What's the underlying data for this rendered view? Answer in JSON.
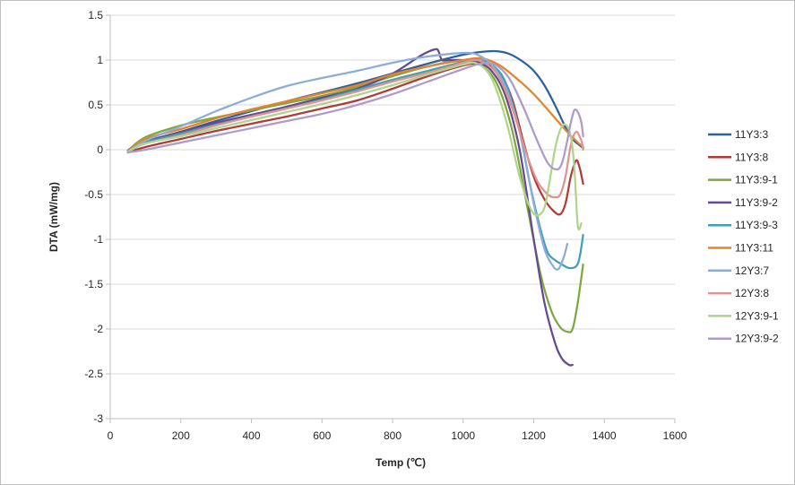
{
  "chart_data": {
    "type": "line",
    "xlabel": "Temp (℃)",
    "ylabel": "DTA (mW/mg)",
    "xlim": [
      0,
      1600
    ],
    "ylim": [
      -3,
      1.5
    ],
    "xticks": [
      0,
      200,
      400,
      600,
      800,
      1000,
      1200,
      1400,
      1600
    ],
    "yticks": [
      -3,
      -2.5,
      -2,
      -1.5,
      -1,
      -0.5,
      0,
      0.5,
      1,
      1.5
    ],
    "grid": "horizontal",
    "legend_position": "right",
    "series": [
      {
        "name": "11Y3:3",
        "color": "#2e5f9e",
        "x": [
          50,
          100,
          200,
          300,
          400,
          500,
          600,
          700,
          800,
          900,
          1000,
          1050,
          1090,
          1130,
          1170,
          1200,
          1230,
          1260,
          1290,
          1310,
          1330,
          1340
        ],
        "y": [
          -0.03,
          0.08,
          0.2,
          0.32,
          0.43,
          0.54,
          0.64,
          0.74,
          0.85,
          0.96,
          1.06,
          1.09,
          1.1,
          1.07,
          0.98,
          0.88,
          0.72,
          0.5,
          0.25,
          0.12,
          0.05,
          0.02
        ]
      },
      {
        "name": "11Y3:8",
        "color": "#b23b37",
        "x": [
          50,
          100,
          200,
          300,
          400,
          500,
          600,
          700,
          800,
          900,
          1000,
          1040,
          1080,
          1110,
          1140,
          1170,
          1200,
          1230,
          1255,
          1275,
          1290,
          1305,
          1320,
          1330,
          1340
        ],
        "y": [
          -0.03,
          0.03,
          0.12,
          0.21,
          0.29,
          0.37,
          0.46,
          0.55,
          0.68,
          0.82,
          0.94,
          0.96,
          0.93,
          0.82,
          0.55,
          0.1,
          -0.3,
          -0.55,
          -0.68,
          -0.72,
          -0.6,
          -0.3,
          -0.12,
          -0.2,
          -0.38
        ]
      },
      {
        "name": "11Y3:9-1",
        "color": "#7ea83e",
        "x": [
          50,
          100,
          200,
          300,
          400,
          500,
          600,
          700,
          800,
          900,
          980,
          1020,
          1060,
          1100,
          1140,
          1180,
          1220,
          1250,
          1275,
          1295,
          1310,
          1325,
          1340
        ],
        "y": [
          -0.01,
          0.14,
          0.27,
          0.36,
          0.44,
          0.52,
          0.6,
          0.7,
          0.82,
          0.93,
          0.99,
          0.99,
          0.92,
          0.7,
          0.2,
          -0.6,
          -1.4,
          -1.8,
          -1.98,
          -2.03,
          -2.0,
          -1.7,
          -1.28
        ]
      },
      {
        "name": "11Y3:9-2",
        "color": "#644b8f",
        "x": [
          50,
          100,
          200,
          300,
          400,
          500,
          600,
          700,
          800,
          880,
          920,
          930,
          940,
          960,
          1000,
          1040,
          1080,
          1120,
          1160,
          1200,
          1230,
          1260,
          1280,
          1300,
          1310
        ],
        "y": [
          -0.01,
          0.09,
          0.2,
          0.3,
          0.39,
          0.48,
          0.58,
          0.68,
          0.85,
          1.05,
          1.12,
          1.1,
          1.0,
          1.0,
          1.0,
          0.98,
          0.88,
          0.6,
          0.0,
          -1.0,
          -1.7,
          -2.15,
          -2.33,
          -2.4,
          -2.4
        ]
      },
      {
        "name": "11Y3:9-3",
        "color": "#3fa0b8",
        "x": [
          50,
          100,
          200,
          300,
          400,
          500,
          600,
          700,
          800,
          900,
          1000,
          1040,
          1080,
          1120,
          1160,
          1190,
          1220,
          1240,
          1260,
          1280,
          1300,
          1320,
          1330,
          1340
        ],
        "y": [
          -0.02,
          0.08,
          0.18,
          0.28,
          0.37,
          0.46,
          0.56,
          0.67,
          0.78,
          0.88,
          0.98,
          1.0,
          0.95,
          0.75,
          0.2,
          -0.4,
          -0.9,
          -1.15,
          -1.23,
          -1.28,
          -1.32,
          -1.3,
          -1.2,
          -0.95
        ]
      },
      {
        "name": "11Y3:11",
        "color": "#e5832c",
        "x": [
          50,
          100,
          200,
          300,
          400,
          500,
          600,
          700,
          800,
          900,
          1000,
          1050,
          1100,
          1150,
          1200,
          1250,
          1290,
          1320,
          1340
        ],
        "y": [
          -0.02,
          0.12,
          0.23,
          0.35,
          0.45,
          0.54,
          0.63,
          0.72,
          0.84,
          0.93,
          1.0,
          1.02,
          0.95,
          0.8,
          0.62,
          0.4,
          0.22,
          0.1,
          0.03
        ]
      },
      {
        "name": "12Y3:7",
        "color": "#8cacd9",
        "x": [
          50,
          100,
          200,
          300,
          400,
          500,
          600,
          700,
          800,
          900,
          1000,
          1040,
          1080,
          1120,
          1160,
          1200,
          1230,
          1255,
          1270,
          1285,
          1295
        ],
        "y": [
          -0.02,
          0.1,
          0.26,
          0.43,
          0.58,
          0.71,
          0.8,
          0.88,
          0.97,
          1.04,
          1.08,
          1.06,
          0.95,
          0.7,
          0.2,
          -0.6,
          -1.1,
          -1.3,
          -1.33,
          -1.2,
          -1.05
        ]
      },
      {
        "name": "12Y3:8",
        "color": "#de9490",
        "x": [
          50,
          100,
          200,
          300,
          400,
          500,
          600,
          700,
          800,
          900,
          1000,
          1030,
          1060,
          1100,
          1140,
          1180,
          1210,
          1240,
          1260,
          1275,
          1290,
          1305,
          1320,
          1335,
          1340
        ],
        "y": [
          -0.02,
          0.07,
          0.16,
          0.27,
          0.37,
          0.46,
          0.55,
          0.65,
          0.76,
          0.86,
          0.97,
          1.0,
          0.97,
          0.82,
          0.45,
          -0.05,
          -0.35,
          -0.5,
          -0.53,
          -0.5,
          -0.3,
          0.05,
          0.2,
          0.1,
          0.0
        ]
      },
      {
        "name": "12Y3:9-1",
        "color": "#b1d48d",
        "x": [
          50,
          100,
          200,
          300,
          400,
          500,
          600,
          700,
          800,
          900,
          1000,
          1040,
          1080,
          1120,
          1160,
          1190,
          1210,
          1230,
          1245,
          1260,
          1275,
          1290,
          1305,
          1315,
          1325,
          1335
        ],
        "y": [
          -0.02,
          0.07,
          0.15,
          0.24,
          0.33,
          0.42,
          0.51,
          0.61,
          0.72,
          0.84,
          0.95,
          0.96,
          0.8,
          0.35,
          -0.3,
          -0.65,
          -0.73,
          -0.65,
          -0.35,
          0.0,
          0.22,
          0.28,
          0.15,
          -0.2,
          -0.85,
          -0.82
        ]
      },
      {
        "name": "12Y3:9-2",
        "color": "#ad9bc9",
        "x": [
          50,
          100,
          200,
          300,
          400,
          500,
          600,
          700,
          800,
          900,
          1000,
          1050,
          1090,
          1130,
          1170,
          1210,
          1240,
          1265,
          1280,
          1295,
          1305,
          1315,
          1325,
          1335,
          1340
        ],
        "y": [
          -0.03,
          0.0,
          0.08,
          0.16,
          0.24,
          0.32,
          0.4,
          0.5,
          0.62,
          0.76,
          0.9,
          0.96,
          0.95,
          0.8,
          0.48,
          0.1,
          -0.15,
          -0.22,
          -0.15,
          0.1,
          0.3,
          0.44,
          0.42,
          0.3,
          0.15
        ]
      }
    ]
  }
}
